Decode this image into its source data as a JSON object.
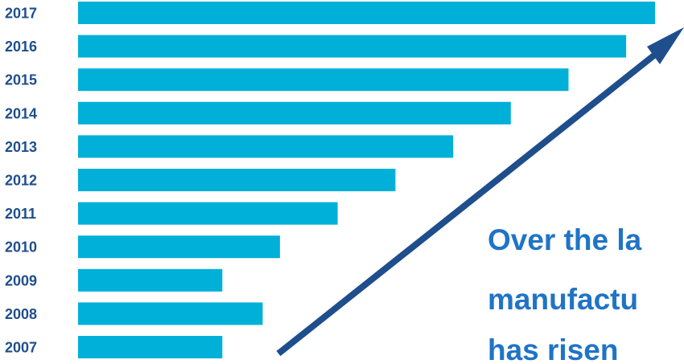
{
  "chart_data": {
    "type": "bar",
    "orientation": "horizontal",
    "categories": [
      "2017",
      "2016",
      "2015",
      "2014",
      "2013",
      "2012",
      "2011",
      "2010",
      "2009",
      "2008",
      "2007"
    ],
    "values": [
      100,
      95,
      85,
      75,
      65,
      55,
      45,
      35,
      25,
      32,
      25
    ],
    "title": "",
    "xlabel": "",
    "ylabel": "",
    "xlim": [
      0,
      100
    ],
    "grid": false,
    "legend": "none",
    "colors": {
      "bar": "#00b0d8",
      "label": "#1f4e8c",
      "arrow": "#1f4e8c",
      "caption": "#1f74c6"
    }
  },
  "caption": {
    "lines": [
      "Over the la",
      "manufactu",
      "has risen"
    ]
  }
}
